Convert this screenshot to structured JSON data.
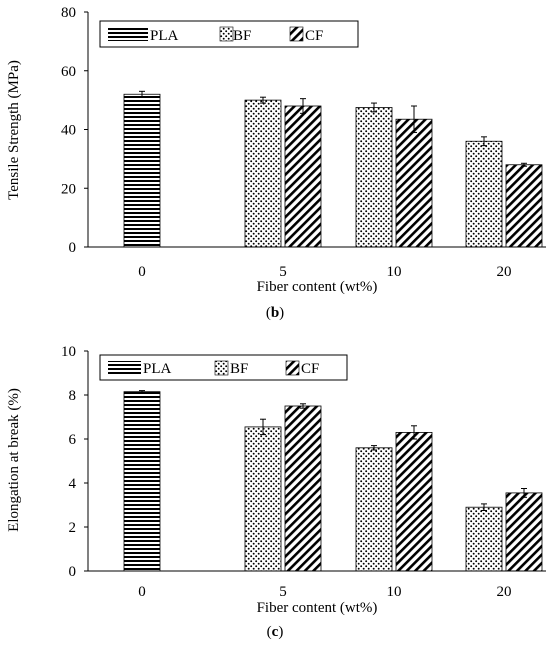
{
  "chart_data": [
    {
      "type": "bar",
      "panel_label": "b",
      "xlabel": "Fiber content (wt%)",
      "ylabel": "Tensile Strength (MPa)",
      "ylim": [
        0,
        80
      ],
      "yticks": [
        "0",
        "20",
        "40",
        "60",
        "80"
      ],
      "grid": false,
      "legend_position": "top-left",
      "categories": [
        "0",
        "5",
        "10",
        "20"
      ],
      "series": [
        {
          "name": "PLA",
          "pattern": "horizontal-lines",
          "values": [
            52.0,
            null,
            null,
            null
          ],
          "errors": [
            1.0,
            null,
            null,
            null
          ]
        },
        {
          "name": "BF",
          "pattern": "dots",
          "values": [
            null,
            50.0,
            47.5,
            36.0
          ],
          "errors": [
            null,
            1.0,
            1.5,
            1.5
          ]
        },
        {
          "name": "CF",
          "pattern": "diagonal-hatch",
          "values": [
            null,
            48.0,
            43.5,
            28.0
          ],
          "errors": [
            null,
            2.5,
            4.5,
            0.5
          ]
        }
      ]
    },
    {
      "type": "bar",
      "panel_label": "c",
      "xlabel": "Fiber content (wt%)",
      "ylabel": "Elongation at break (%)",
      "ylim": [
        0,
        10
      ],
      "yticks": [
        "0",
        "2",
        "4",
        "6",
        "8",
        "10"
      ],
      "grid": false,
      "legend_position": "top-left",
      "categories": [
        "0",
        "5",
        "10",
        "20"
      ],
      "series": [
        {
          "name": "PLA",
          "pattern": "horizontal-lines",
          "values": [
            8.15,
            null,
            null,
            null
          ],
          "errors": [
            0.05,
            null,
            null,
            null
          ]
        },
        {
          "name": "BF",
          "pattern": "dots",
          "values": [
            null,
            6.55,
            5.6,
            2.9
          ],
          "errors": [
            null,
            0.35,
            0.1,
            0.15
          ]
        },
        {
          "name": "CF",
          "pattern": "diagonal-hatch",
          "values": [
            null,
            7.5,
            6.3,
            3.55
          ],
          "errors": [
            null,
            0.1,
            0.3,
            0.2
          ]
        }
      ]
    }
  ]
}
